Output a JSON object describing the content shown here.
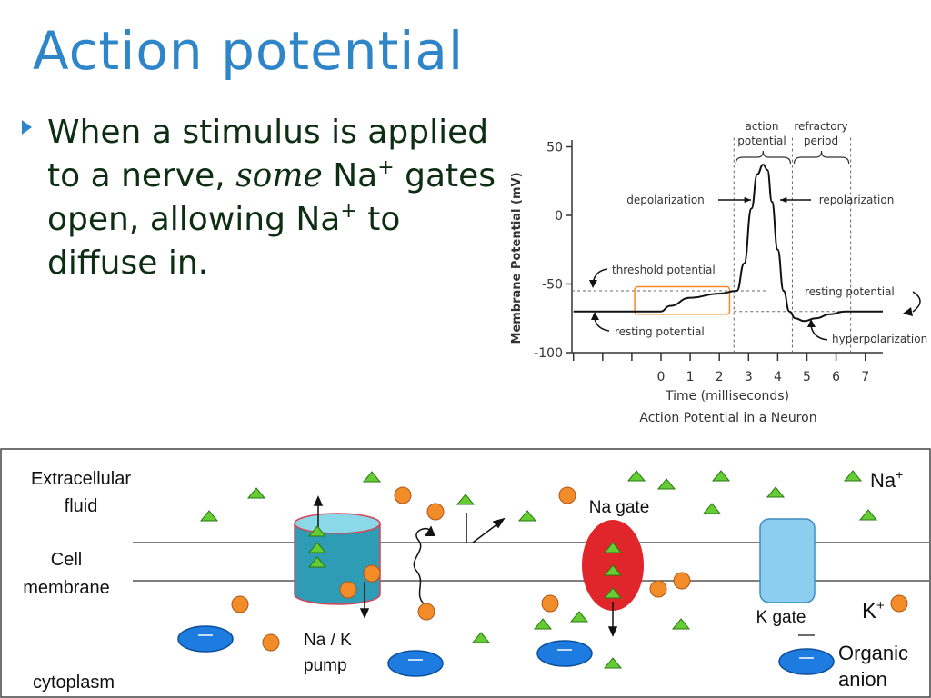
{
  "slide": {
    "title": "Action potential",
    "bullet": {
      "part1": "When a stimulus is applied to a nerve, ",
      "emphasis": "some",
      "na1": " Na",
      "sup1": "+",
      "part2": " gates open, allowing Na",
      "sup2": "+",
      "part3": " to diffuse in."
    }
  },
  "chart_data": {
    "type": "line",
    "title": "Action Potential in a Neuron",
    "xlabel": "Time (milliseconds)",
    "ylabel": "Membrane Potential (mV)",
    "xlim": [
      -3,
      7.6
    ],
    "ylim": [
      -100,
      55
    ],
    "x_ticks": [
      0,
      1,
      2,
      3,
      4,
      5,
      6,
      7
    ],
    "y_ticks": [
      50,
      0,
      -50,
      -100
    ],
    "series": [
      {
        "values_x": [
          -3,
          0,
          0.3,
          1,
          2,
          2.6,
          2.85,
          3.1,
          3.3,
          3.5,
          3.65,
          3.8,
          4.0,
          4.2,
          4.4,
          4.6,
          4.9,
          5.3,
          5.8,
          6.3,
          7.6
        ],
        "values_y": [
          -70,
          -70,
          -66,
          -60,
          -57,
          -55,
          -35,
          5,
          30,
          37,
          33,
          10,
          -25,
          -55,
          -70,
          -75,
          -77,
          -75,
          -72,
          -70,
          -70
        ]
      }
    ],
    "threshold_mV": -55,
    "resting_mV": -70,
    "action_potential_ms": [
      2.5,
      4.5
    ],
    "refractory_ms": [
      4.5,
      6.5
    ],
    "annotations": {
      "action_potential": [
        "action",
        "potential"
      ],
      "refractory_period": [
        "refractory",
        "period"
      ],
      "depolarization": "depolarization",
      "repolarization": "repolarization",
      "threshold_potential": "threshold potential",
      "resting_potential_left": "resting potential",
      "resting_potential_right": "resting potential",
      "hyperpolarization": "hyperpolarization"
    }
  },
  "diagram": {
    "labels": {
      "extracellular": [
        "Extracellular",
        "fluid"
      ],
      "cell_membrane": [
        "Cell",
        "membrane"
      ],
      "cytoplasm": "cytoplasm",
      "pump": [
        "Na / K",
        "pump"
      ],
      "na_gate": "Na gate",
      "k_gate": "K gate",
      "legend_na": "Na",
      "legend_na_sup": "+",
      "legend_k": "K",
      "legend_k_sup": "+",
      "organic": [
        "Organic",
        "anion"
      ]
    },
    "colors": {
      "na_ion": "#66cc33",
      "k_ion": "#f28c28",
      "anion": "#1e7be0",
      "pump": "#2e9cb4",
      "na_gate": "#e0262a",
      "k_gate": "#8ccdf0"
    }
  }
}
